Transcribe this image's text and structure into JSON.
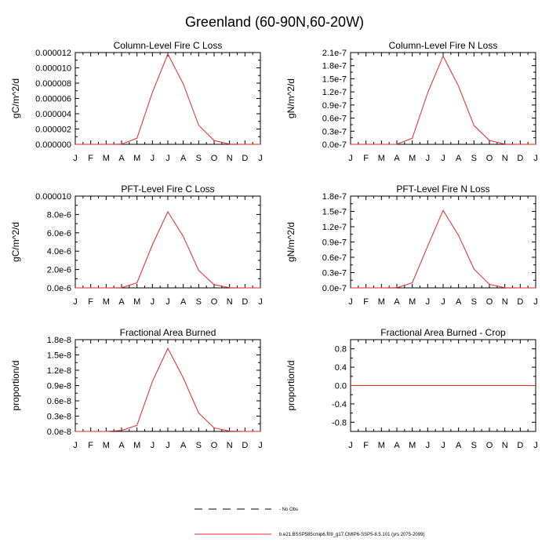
{
  "title": "Greenland (60-90N,60-20W)",
  "months": [
    "J",
    "F",
    "M",
    "A",
    "M",
    "J",
    "J",
    "A",
    "S",
    "O",
    "N",
    "D",
    "J"
  ],
  "line_color": "#e8262a",
  "legend": {
    "items": [
      {
        "label": "No Obs",
        "style": "dashed",
        "color": "#000000"
      },
      {
        "label": "b.e21.BSSP585cmip6.f09_g17.CMIP6-SSP5-8.5.101 (yrs 2075-2099)",
        "style": "solid",
        "color": "#e8262a"
      }
    ]
  },
  "chart_data": [
    {
      "type": "line",
      "title": "Column-Level Fire C Loss",
      "xlabel": "",
      "ylabel": "gC/m^2/d",
      "ylim": [
        0,
        1.2e-05
      ],
      "yticks": [
        0,
        2e-06,
        4e-06,
        6e-06,
        8e-06,
        1e-05,
        1.2e-05
      ],
      "ytick_labels": [
        "0.000000",
        "0.000002",
        "0.000004",
        "0.000006",
        "0.000008",
        "0.000010",
        "0.000012"
      ],
      "categories": [
        "J",
        "F",
        "M",
        "A",
        "M",
        "J",
        "J",
        "A",
        "S",
        "O",
        "N",
        "D",
        "J"
      ],
      "values": [
        0,
        0,
        0,
        2e-08,
        8e-07,
        6.8e-06,
        1.18e-05,
        7.9e-06,
        2.5e-06,
        5e-07,
        3e-08,
        0,
        0
      ]
    },
    {
      "type": "line",
      "title": "Column-Level Fire N Loss",
      "xlabel": "",
      "ylabel": "gN/m^2/d",
      "ylim": [
        0,
        2.1e-07
      ],
      "yticks": [
        0,
        3e-08,
        6e-08,
        9e-08,
        1.2e-07,
        1.5e-07,
        1.8e-07,
        2.1e-07
      ],
      "ytick_labels": [
        "0.0e-7",
        "0.3e-7",
        "0.6e-7",
        "0.9e-7",
        "1.2e-7",
        "1.5e-7",
        "1.8e-7",
        "2.1e-7"
      ],
      "categories": [
        "J",
        "F",
        "M",
        "A",
        "M",
        "J",
        "J",
        "A",
        "S",
        "O",
        "N",
        "D",
        "J"
      ],
      "values": [
        0,
        0,
        0,
        3e-10,
        1.4e-08,
        1.18e-07,
        2.02e-07,
        1.33e-07,
        4.3e-08,
        9e-09,
        5e-10,
        0,
        0
      ]
    },
    {
      "type": "line",
      "title": "PFT-Level Fire C Loss",
      "xlabel": "",
      "ylabel": "gC/m^2/d",
      "ylim": [
        0,
        1e-05
      ],
      "yticks": [
        0,
        2e-06,
        4e-06,
        6e-06,
        8e-06,
        1e-05
      ],
      "ytick_labels": [
        "0.0e-6",
        "2.0e-6",
        "4.0e-6",
        "6.0e-6",
        "8.0e-6",
        "0.000010"
      ],
      "categories": [
        "J",
        "F",
        "M",
        "A",
        "M",
        "J",
        "J",
        "A",
        "S",
        "O",
        "N",
        "D",
        "J"
      ],
      "values": [
        0,
        0,
        0,
        2e-08,
        5.5e-07,
        4.7e-06,
        8.3e-06,
        5.6e-06,
        1.9e-06,
        3.5e-07,
        2e-08,
        0,
        0
      ]
    },
    {
      "type": "line",
      "title": "PFT-Level Fire N Loss",
      "xlabel": "",
      "ylabel": "gN/m^2/d",
      "ylim": [
        0,
        1.8e-07
      ],
      "yticks": [
        0,
        3e-08,
        6e-08,
        9e-08,
        1.2e-07,
        1.5e-07,
        1.8e-07
      ],
      "ytick_labels": [
        "0.0e-7",
        "0.3e-7",
        "0.6e-7",
        "0.9e-7",
        "1.2e-7",
        "1.5e-7",
        "1.8e-7"
      ],
      "categories": [
        "J",
        "F",
        "M",
        "A",
        "M",
        "J",
        "J",
        "A",
        "S",
        "O",
        "N",
        "D",
        "J"
      ],
      "values": [
        0,
        0,
        0,
        3e-10,
        1e-08,
        8.2e-08,
        1.52e-07,
        1.03e-07,
        3.7e-08,
        7e-09,
        4e-10,
        0,
        0
      ]
    },
    {
      "type": "line",
      "title": "Fractional Area Burned",
      "xlabel": "",
      "ylabel": "proportion/d",
      "ylim": [
        0,
        1.8e-08
      ],
      "yticks": [
        0,
        3e-09,
        6e-09,
        9e-09,
        1.2e-08,
        1.5e-08,
        1.8e-08
      ],
      "ytick_labels": [
        "0.0e-8",
        "0.3e-8",
        "0.6e-8",
        "0.9e-8",
        "1.2e-8",
        "1.5e-8",
        "1.8e-8"
      ],
      "categories": [
        "J",
        "F",
        "M",
        "A",
        "M",
        "J",
        "J",
        "A",
        "S",
        "O",
        "N",
        "D",
        "J"
      ],
      "values": [
        0,
        0,
        0,
        2e-10,
        1.2e-09,
        9.8e-09,
        1.63e-08,
        1.05e-08,
        3.6e-09,
        7e-10,
        5e-11,
        0,
        0
      ]
    },
    {
      "type": "line",
      "title": "Fractional Area Burned - Crop",
      "xlabel": "",
      "ylabel": "proportion/d",
      "ylim": [
        -1,
        1
      ],
      "yticks": [
        -0.8,
        -0.4,
        0,
        0.4,
        0.8
      ],
      "ytick_labels": [
        "-0.8",
        "-0.4",
        "0.0",
        "0.4",
        "0.8"
      ],
      "categories": [
        "J",
        "F",
        "M",
        "A",
        "M",
        "J",
        "J",
        "A",
        "S",
        "O",
        "N",
        "D",
        "J"
      ],
      "values": [
        0,
        0,
        0,
        0,
        0,
        0,
        0,
        0,
        0,
        0,
        0,
        0,
        0
      ]
    }
  ]
}
